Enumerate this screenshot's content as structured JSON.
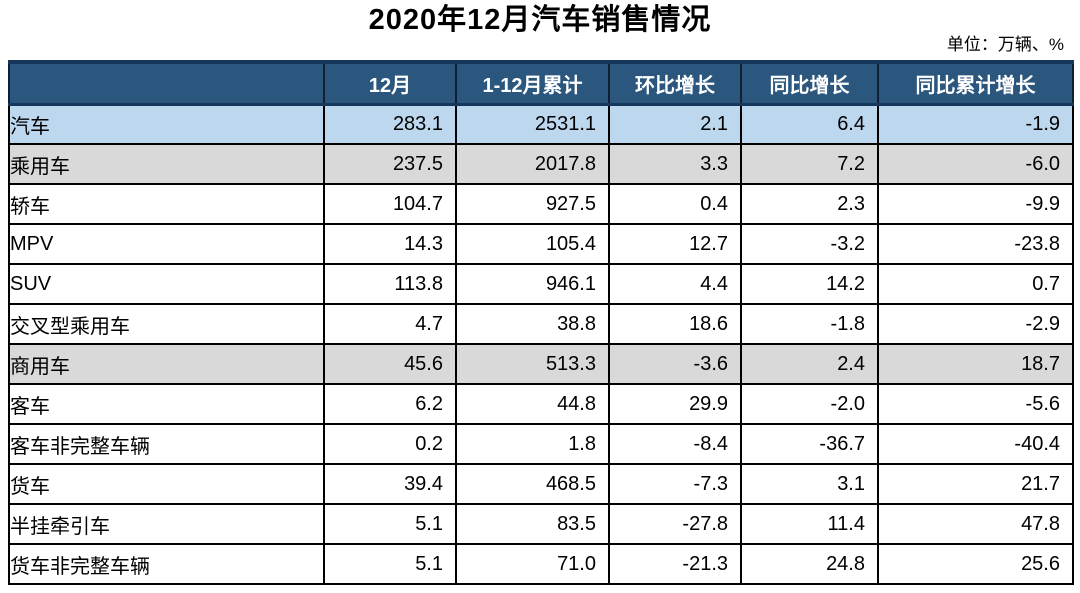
{
  "title": "2020年12月汽车销售情况",
  "unit_note": "单位：万辆、%",
  "colors": {
    "header_bg": "#2B567E",
    "header_text": "#FFFFFF",
    "header_border": "#16365C",
    "row_blue_bg": "#BDD7EE",
    "row_grey_bg": "#D9D9D9",
    "grid_border": "#000000"
  },
  "table": {
    "columns": [
      "",
      "12月",
      "1-12月累计",
      "环比增长",
      "同比增长",
      "同比累计增长"
    ],
    "rows": [
      {
        "label": "汽车",
        "indent": 0,
        "bg": "blue",
        "values": [
          "283.1",
          "2531.1",
          "2.1",
          "6.4",
          "-1.9"
        ]
      },
      {
        "label": "乘用车",
        "indent": 1,
        "bg": "grey",
        "values": [
          "237.5",
          "2017.8",
          "3.3",
          "7.2",
          "-6.0"
        ]
      },
      {
        "label": "轿车",
        "indent": 2,
        "bg": "white",
        "values": [
          "104.7",
          "927.5",
          "0.4",
          "2.3",
          "-9.9"
        ]
      },
      {
        "label": "MPV",
        "indent": 2,
        "bg": "white",
        "values": [
          "14.3",
          "105.4",
          "12.7",
          "-3.2",
          "-23.8"
        ]
      },
      {
        "label": "SUV",
        "indent": 2,
        "bg": "white",
        "values": [
          "113.8",
          "946.1",
          "4.4",
          "14.2",
          "0.7"
        ]
      },
      {
        "label": "交叉型乘用车",
        "indent": 2,
        "bg": "white",
        "values": [
          "4.7",
          "38.8",
          "18.6",
          "-1.8",
          "-2.9"
        ]
      },
      {
        "label": "商用车",
        "indent": 1,
        "bg": "grey",
        "values": [
          "45.6",
          "513.3",
          "-3.6",
          "2.4",
          "18.7"
        ]
      },
      {
        "label": "客车",
        "indent": 2,
        "bg": "white",
        "values": [
          "6.2",
          "44.8",
          "29.9",
          "-2.0",
          "-5.6"
        ]
      },
      {
        "label": "客车非完整车辆",
        "indent": 3,
        "bg": "white",
        "values": [
          "0.2",
          "1.8",
          "-8.4",
          "-36.7",
          "-40.4"
        ]
      },
      {
        "label": "货车",
        "indent": 2,
        "bg": "white",
        "values": [
          "39.4",
          "468.5",
          "-7.3",
          "3.1",
          "21.7"
        ]
      },
      {
        "label": "半挂牵引车",
        "indent": 3,
        "bg": "white",
        "values": [
          "5.1",
          "83.5",
          "-27.8",
          "11.4",
          "47.8"
        ]
      },
      {
        "label": "货车非完整车辆",
        "indent": 3,
        "bg": "white",
        "values": [
          "5.1",
          "71.0",
          "-21.3",
          "24.8",
          "25.6"
        ]
      }
    ]
  },
  "chart_data": {
    "type": "table",
    "title": "2020年12月汽车销售情况",
    "unit": "单位：万辆、%",
    "columns": [
      "12月",
      "1-12月累计",
      "环比增长",
      "同比增长",
      "同比累计增长"
    ],
    "rows": [
      {
        "category": "汽车",
        "values": [
          283.1,
          2531.1,
          2.1,
          6.4,
          -1.9
        ]
      },
      {
        "category": "乘用车",
        "values": [
          237.5,
          2017.8,
          3.3,
          7.2,
          -6.0
        ]
      },
      {
        "category": "轿车",
        "values": [
          104.7,
          927.5,
          0.4,
          2.3,
          -9.9
        ]
      },
      {
        "category": "MPV",
        "values": [
          14.3,
          105.4,
          12.7,
          -3.2,
          -23.8
        ]
      },
      {
        "category": "SUV",
        "values": [
          113.8,
          946.1,
          4.4,
          14.2,
          0.7
        ]
      },
      {
        "category": "交叉型乘用车",
        "values": [
          4.7,
          38.8,
          18.6,
          -1.8,
          -2.9
        ]
      },
      {
        "category": "商用车",
        "values": [
          45.6,
          513.3,
          -3.6,
          2.4,
          18.7
        ]
      },
      {
        "category": "客车",
        "values": [
          6.2,
          44.8,
          29.9,
          -2.0,
          -5.6
        ]
      },
      {
        "category": "客车非完整车辆",
        "values": [
          0.2,
          1.8,
          -8.4,
          -36.7,
          -40.4
        ]
      },
      {
        "category": "货车",
        "values": [
          39.4,
          468.5,
          -7.3,
          3.1,
          21.7
        ]
      },
      {
        "category": "半挂牵引车",
        "values": [
          5.1,
          83.5,
          -27.8,
          11.4,
          47.8
        ]
      },
      {
        "category": "货车非完整车辆",
        "values": [
          5.1,
          71.0,
          -21.3,
          24.8,
          25.6
        ]
      }
    ]
  }
}
